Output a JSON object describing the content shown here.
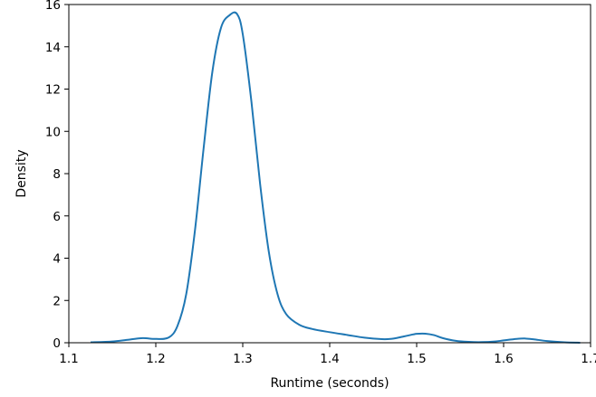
{
  "chart_data": {
    "type": "line",
    "title": "",
    "xlabel": "Runtime (seconds)",
    "ylabel": "Density",
    "xlim": [
      1.1,
      1.7
    ],
    "ylim": [
      0,
      16
    ],
    "grid": false,
    "legend": "none",
    "color": "#1f77b4",
    "xticks": [
      "1.1",
      "1.2",
      "1.3",
      "1.4",
      "1.5",
      "1.6",
      "1.7"
    ],
    "yticks": [
      "0",
      "2",
      "4",
      "6",
      "8",
      "10",
      "12",
      "14",
      "16"
    ],
    "series": [
      {
        "x": [
          1.125,
          1.15,
          1.17,
          1.185,
          1.2,
          1.215,
          1.225,
          1.235,
          1.245,
          1.255,
          1.265,
          1.275,
          1.285,
          1.2935,
          1.3,
          1.31,
          1.32,
          1.33,
          1.34,
          1.35,
          1.365,
          1.38,
          1.4,
          1.42,
          1.44,
          1.46,
          1.47,
          1.48,
          1.49,
          1.5,
          1.51,
          1.52,
          1.53,
          1.545,
          1.56,
          1.575,
          1.59,
          1.6,
          1.615,
          1.625,
          1.635,
          1.65,
          1.67,
          1.688
        ],
        "y": [
          0.02,
          0.06,
          0.15,
          0.22,
          0.18,
          0.25,
          0.8,
          2.3,
          5.3,
          9.2,
          12.8,
          14.9,
          15.5,
          15.55,
          14.6,
          11.4,
          7.5,
          4.3,
          2.3,
          1.35,
          0.85,
          0.65,
          0.5,
          0.37,
          0.24,
          0.17,
          0.18,
          0.25,
          0.34,
          0.42,
          0.43,
          0.36,
          0.22,
          0.09,
          0.04,
          0.03,
          0.06,
          0.11,
          0.18,
          0.2,
          0.16,
          0.08,
          0.02,
          0.0
        ]
      }
    ]
  }
}
